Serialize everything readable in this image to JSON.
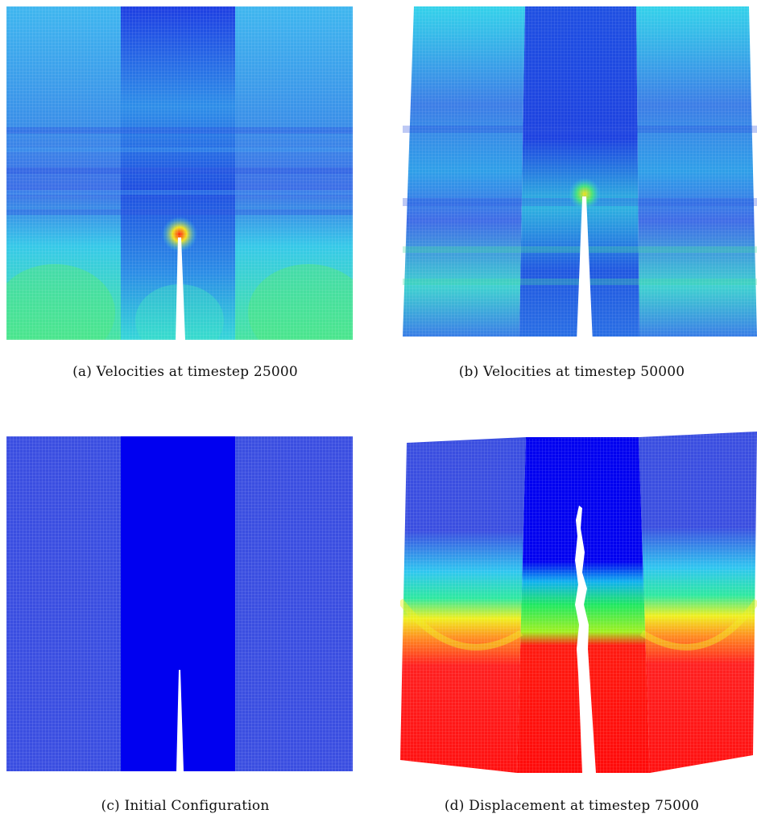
{
  "figure": {
    "panels": [
      {
        "id": "a",
        "caption": "(a) Velocities at timestep 25000"
      },
      {
        "id": "b",
        "caption": "(b) Velocities at timestep 50000"
      },
      {
        "id": "c",
        "caption": "(c) Initial Configuration"
      },
      {
        "id": "d",
        "caption": "(d) Displacement at timestep 75000"
      }
    ]
  },
  "colors": {
    "mesh_blue": "#3a4ee0",
    "core_blue": "#0000f0",
    "velocity_cyan": "#2ee0e6",
    "velocity_dark": "#1a4fe0",
    "hot_red": "#ff1010",
    "green": "#22e85a",
    "yellow": "#f0f020"
  }
}
